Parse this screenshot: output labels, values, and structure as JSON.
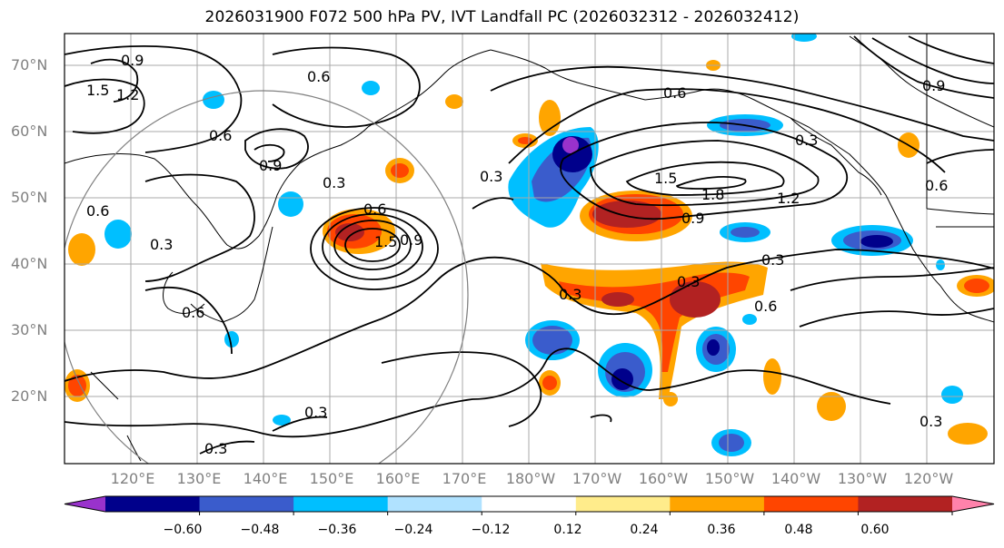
{
  "title": "2026031900 F072 500 hPa PV, IVT Landfall PC (2026032312 - 2026032412)",
  "lat_labels": [
    "70°N",
    "60°N",
    "50°N",
    "40°N",
    "30°N",
    "20°N"
  ],
  "lon_labels": [
    "120°E",
    "130°E",
    "140°E",
    "150°E",
    "160°E",
    "170°E",
    "180°W",
    "170°W",
    "160°W",
    "150°W",
    "140°W",
    "130°W",
    "120°W"
  ],
  "contour_labels": [
    "0.9",
    "1.5",
    "1.2",
    "0.6",
    "0.6",
    "0.9",
    "0.3",
    "0.6",
    "0.3",
    "0.3",
    "0.6",
    "0.9",
    "1.5",
    "0.6",
    "0.3",
    "0.6",
    "1.5",
    "1.8",
    "1.2",
    "0.9",
    "0.3",
    "0.3",
    "0.6",
    "0.3",
    "0.3",
    "0.3",
    "0.9",
    "0.6",
    "0.3"
  ],
  "colorbar": {
    "colors": [
      "#9932cc",
      "#00008b",
      "#3a5ccc",
      "#00bfff",
      "#b0e2ff",
      "#ffffff",
      "#ffec8b",
      "#ffa500",
      "#ff4500",
      "#b22222",
      "#ff82ab"
    ],
    "ticks": [
      "−0.60",
      "−0.48",
      "−0.36",
      "−0.24",
      "−0.12",
      "0.12",
      "0.24",
      "0.36",
      "0.48",
      "0.60"
    ]
  }
}
